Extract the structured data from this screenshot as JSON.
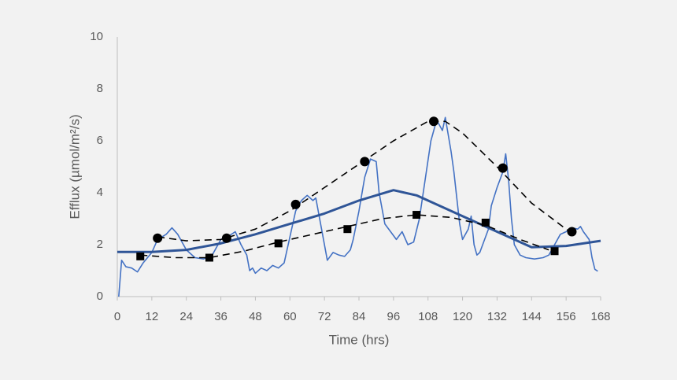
{
  "chart_data": {
    "type": "line",
    "x_label": "Time (hrs)",
    "y_label": "Efflux (µmol/m²/s)",
    "xlim": [
      0,
      168
    ],
    "xticks": [
      0,
      12,
      24,
      36,
      48,
      60,
      72,
      84,
      96,
      108,
      120,
      132,
      144,
      156,
      168
    ],
    "ylim": [
      0,
      10
    ],
    "yticks": [
      0,
      2,
      4,
      6,
      8,
      10
    ],
    "grid": false,
    "series": [
      {
        "color": "#4472c4",
        "width": 1.6,
        "dash": false,
        "marker": "none",
        "x": [
          0.5,
          1.5,
          3,
          5,
          7,
          9,
          12,
          14,
          17,
          19,
          21,
          24,
          27,
          30,
          33,
          36,
          39,
          41,
          43,
          45,
          46,
          47,
          48,
          50,
          52,
          54,
          56,
          58,
          60,
          62,
          64,
          66,
          68,
          69,
          71,
          73,
          75,
          77,
          79,
          81,
          82,
          84,
          86,
          88,
          90,
          91,
          93,
          95,
          97,
          99,
          101,
          103,
          105,
          107,
          109,
          111,
          113,
          114,
          116,
          117,
          118,
          119,
          120,
          122,
          123,
          124,
          125,
          126,
          128,
          129,
          130,
          132,
          134,
          135,
          136,
          137,
          138,
          140,
          142,
          145,
          148,
          150,
          152,
          154,
          156,
          158,
          160,
          161,
          162,
          164,
          165,
          166,
          167
        ],
        "values": [
          0,
          1.4,
          1.15,
          1.1,
          0.95,
          1.3,
          1.7,
          2.2,
          2.4,
          2.65,
          2.4,
          1.8,
          1.5,
          1.45,
          1.6,
          2.2,
          2.35,
          2.5,
          2.0,
          1.6,
          1.0,
          1.1,
          0.9,
          1.1,
          1.0,
          1.2,
          1.1,
          1.3,
          2.3,
          3.3,
          3.7,
          3.9,
          3.7,
          3.8,
          2.6,
          1.4,
          1.7,
          1.6,
          1.55,
          1.8,
          2.2,
          3.3,
          4.6,
          5.3,
          5.2,
          4.0,
          2.8,
          2.5,
          2.2,
          2.5,
          2.0,
          2.1,
          3.0,
          4.5,
          6.0,
          6.8,
          6.4,
          6.9,
          5.6,
          4.8,
          3.8,
          2.8,
          2.2,
          2.6,
          3.1,
          2.0,
          1.6,
          1.7,
          2.3,
          2.6,
          3.5,
          4.2,
          4.8,
          5.5,
          4.5,
          3.0,
          2.0,
          1.6,
          1.5,
          1.45,
          1.5,
          1.6,
          2.0,
          2.4,
          2.5,
          2.65,
          2.6,
          2.7,
          2.5,
          2.2,
          1.5,
          1.05,
          0.98
        ]
      },
      {
        "color": "#2f5597",
        "width": 3,
        "dash": false,
        "marker": "none",
        "x": [
          0,
          12,
          24,
          36,
          48,
          60,
          72,
          84,
          96,
          104,
          108,
          120,
          132,
          144,
          156,
          168
        ],
        "values": [
          1.72,
          1.72,
          1.8,
          2.05,
          2.4,
          2.8,
          3.2,
          3.7,
          4.1,
          3.9,
          3.7,
          3.1,
          2.5,
          1.9,
          1.95,
          2.15
        ]
      },
      {
        "color": "#000000",
        "width": 1.6,
        "dash": true,
        "marker": "none",
        "x": [
          14,
          24,
          36,
          48,
          60,
          72,
          84,
          96,
          108,
          114,
          120,
          132,
          144,
          156,
          158
        ],
        "values": [
          2.3,
          2.15,
          2.2,
          2.6,
          3.3,
          4.2,
          5.1,
          6.0,
          6.75,
          6.75,
          6.3,
          5.0,
          3.6,
          2.6,
          2.45
        ]
      },
      {
        "color": "#000000",
        "width": 1.6,
        "dash": true,
        "marker": "none",
        "x": [
          8,
          20,
          32,
          44,
          56,
          68,
          80,
          92,
          104,
          116,
          128,
          140,
          150
        ],
        "values": [
          1.6,
          1.5,
          1.5,
          1.75,
          2.1,
          2.4,
          2.7,
          3.0,
          3.15,
          3.05,
          2.75,
          2.2,
          1.8
        ]
      },
      {
        "color": "#000000",
        "width": 0,
        "dash": false,
        "marker": "circle",
        "x": [
          14,
          38,
          62,
          86,
          110,
          134,
          158
        ],
        "values": [
          2.25,
          2.25,
          3.55,
          5.2,
          6.75,
          4.95,
          2.5
        ]
      },
      {
        "color": "#000000",
        "width": 0,
        "dash": false,
        "marker": "square",
        "x": [
          8,
          32,
          56,
          80,
          104,
          128,
          152
        ],
        "values": [
          1.55,
          1.5,
          2.05,
          2.6,
          3.15,
          2.85,
          1.75
        ]
      }
    ]
  }
}
